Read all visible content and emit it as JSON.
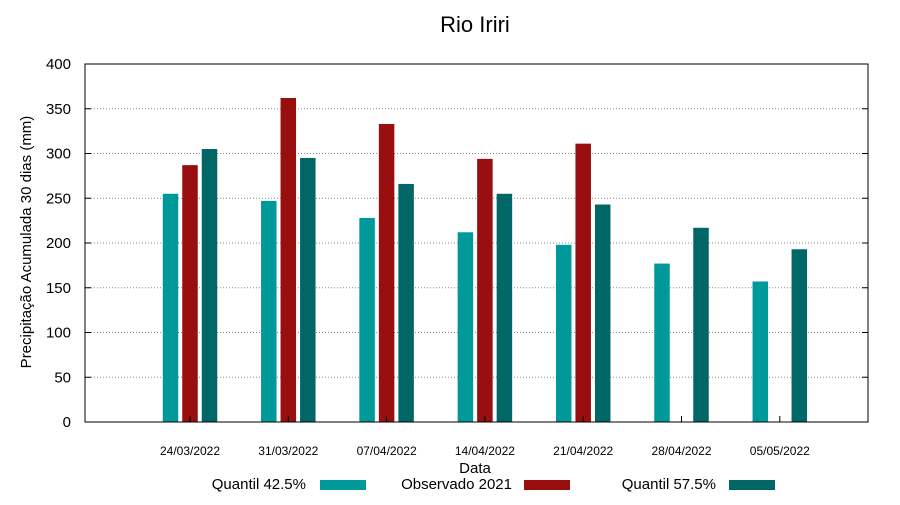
{
  "chart_data": {
    "type": "bar",
    "title": "Rio Iriri",
    "xlabel": "Data",
    "ylabel": "Precipitação Acumulada 30 dias (mm)",
    "ylim": [
      0,
      400
    ],
    "yticks": [
      0,
      50,
      100,
      150,
      200,
      250,
      300,
      350,
      400
    ],
    "grid": true,
    "legend_position": "bottom",
    "categories": [
      "24/03/2022",
      "31/03/2022",
      "07/04/2022",
      "14/04/2022",
      "21/04/2022",
      "28/04/2022",
      "05/05/2022"
    ],
    "series": [
      {
        "name": "Quantil 42.5%",
        "color": "#009999",
        "values": [
          255,
          247,
          228,
          212,
          198,
          177,
          157
        ]
      },
      {
        "name": "Observado 2021",
        "color": "#990f0f",
        "values": [
          287,
          362,
          333,
          294,
          311,
          null,
          null
        ]
      },
      {
        "name": "Quantil 57.5%",
        "color": "#006666",
        "values": [
          305,
          295,
          266,
          255,
          243,
          217,
          193
        ]
      }
    ]
  }
}
